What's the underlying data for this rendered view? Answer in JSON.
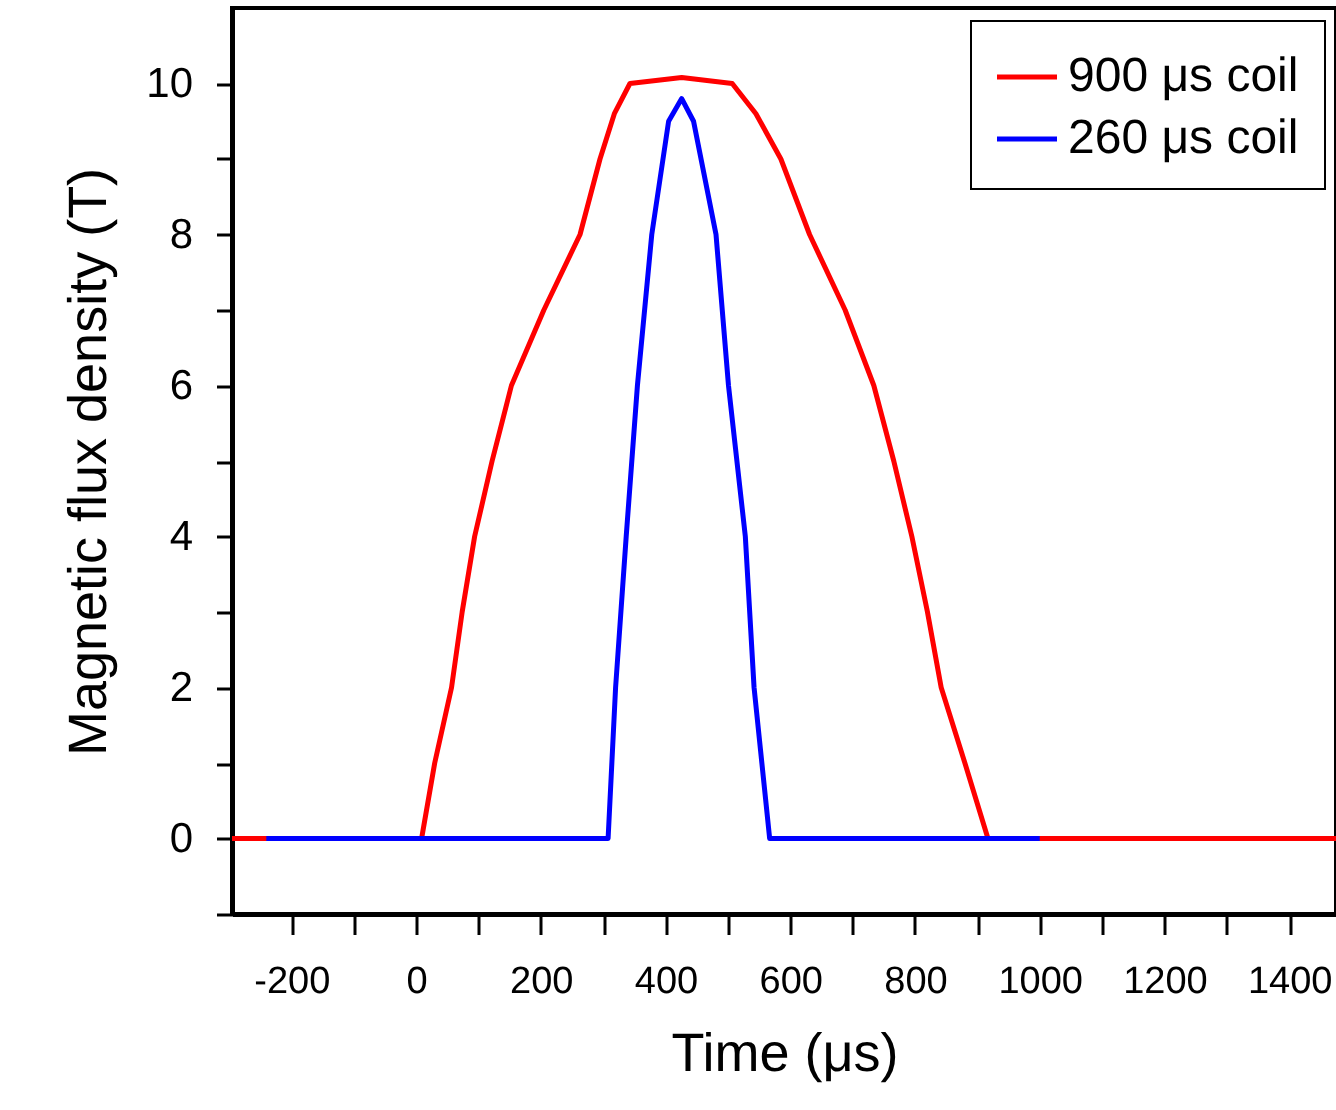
{
  "chart_data": {
    "type": "line",
    "xlabel": "Time (μs)",
    "ylabel": "Magnetic flux density (T)",
    "xlim": [
      -295,
      1475
    ],
    "ylim": [
      -1,
      11
    ],
    "xticks": [
      -200,
      {
        "value": -100,
        "label": null
      },
      0,
      {
        "value": 100,
        "label": null
      },
      200,
      {
        "value": 300,
        "label": null
      },
      400,
      {
        "value": 500,
        "label": null
      },
      600,
      {
        "value": 700,
        "label": null
      },
      800,
      {
        "value": 900,
        "label": null
      },
      1000,
      {
        "value": 1100,
        "label": null
      },
      1200,
      {
        "value": 1300,
        "label": null
      },
      1400
    ],
    "yticks": [
      {
        "value": -1,
        "label": null
      },
      0,
      {
        "value": 1,
        "label": null
      },
      2,
      {
        "value": 3,
        "label": null
      },
      4,
      {
        "value": 5,
        "label": null
      },
      6,
      {
        "value": 7,
        "label": null
      },
      8,
      {
        "value": 9,
        "label": null
      },
      10
    ],
    "grid": false,
    "legend": "top right",
    "series": [
      {
        "name": "900 μs coil",
        "color": "#ff0000",
        "x": [
          -295,
          9,
          30,
          57,
          74,
          94,
          122,
          153,
          205,
          263,
          295,
          318,
          343,
          426,
          507,
          545,
          585,
          631,
          688,
          734,
          766,
          795,
          820,
          842,
          880,
          917,
          1475
        ],
        "values": [
          0,
          0,
          1,
          2,
          3,
          4,
          5,
          6,
          7,
          8,
          9,
          9.6,
          10,
          10.08,
          10,
          9.6,
          9,
          8,
          7,
          6,
          5,
          4,
          3,
          2,
          1,
          0,
          0
        ]
      },
      {
        "name": "260 μs coil",
        "color": "#0000ff",
        "x": [
          -240,
          308,
          320,
          337,
          355,
          378,
          405,
          426,
          445,
          481,
          501,
          528,
          542,
          567,
          1000
        ],
        "values": [
          0,
          0,
          2,
          4,
          6,
          8,
          9.5,
          9.8,
          9.5,
          8,
          6,
          4,
          2,
          0,
          0
        ]
      }
    ]
  }
}
